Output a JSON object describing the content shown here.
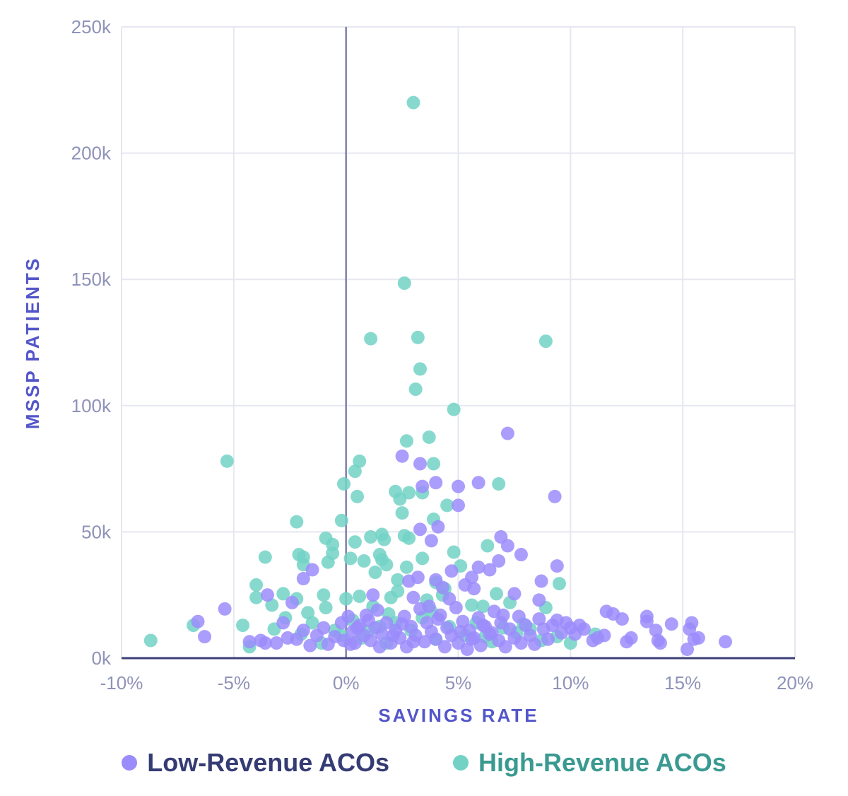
{
  "chart_data": {
    "type": "scatter",
    "title": "",
    "xlabel": "SAVINGS RATE",
    "ylabel": "MSSP PATIENTS",
    "xlim": [
      -10,
      20
    ],
    "ylim": [
      0,
      250000
    ],
    "x_ticks": [
      -10,
      -5,
      0,
      5,
      10,
      15,
      20
    ],
    "x_tick_labels": [
      "-10%",
      "-5%",
      "0%",
      "5%",
      "10%",
      "15%",
      "20%"
    ],
    "y_ticks": [
      0,
      50000,
      100000,
      150000,
      200000,
      250000
    ],
    "y_tick_labels": [
      "0k",
      "50k",
      "100k",
      "150k",
      "200k",
      "250k"
    ],
    "grid": true,
    "legend_position": "bottom",
    "series": [
      {
        "name": "Low-Revenue ACOs",
        "color": "#9b8cfb",
        "label_color": "#353b73",
        "points": [
          [
            2.5,
            80000
          ],
          [
            3.3,
            77000
          ],
          [
            4.0,
            69500
          ],
          [
            5.0,
            68000
          ],
          [
            5.9,
            69500
          ],
          [
            3.4,
            68000
          ],
          [
            7.2,
            89000
          ],
          [
            9.3,
            64000
          ],
          [
            5.0,
            60500
          ],
          [
            6.9,
            48000
          ],
          [
            4.1,
            52000
          ],
          [
            3.3,
            51000
          ],
          [
            3.8,
            46500
          ],
          [
            7.2,
            44500
          ],
          [
            7.8,
            41000
          ],
          [
            6.8,
            38500
          ],
          [
            5.9,
            36000
          ],
          [
            6.4,
            35000
          ],
          [
            4.7,
            34500
          ],
          [
            5.6,
            32000
          ],
          [
            3.2,
            32000
          ],
          [
            2.8,
            30500
          ],
          [
            4.0,
            31000
          ],
          [
            9.4,
            36500
          ],
          [
            8.7,
            30500
          ],
          [
            5.3,
            29000
          ],
          [
            5.7,
            27500
          ],
          [
            4.3,
            28000
          ],
          [
            7.5,
            25500
          ],
          [
            8.6,
            23000
          ],
          [
            3.0,
            24000
          ],
          [
            1.2,
            25000
          ],
          [
            -3.5,
            25000
          ],
          [
            -1.5,
            35000
          ],
          [
            -1.9,
            31500
          ],
          [
            -2.4,
            22000
          ],
          [
            -5.4,
            19500
          ],
          [
            -6.6,
            14500
          ],
          [
            -6.3,
            8500
          ],
          [
            -4.3,
            6500
          ],
          [
            -3.8,
            7000
          ],
          [
            -3.6,
            6000
          ],
          [
            -3.1,
            6000
          ],
          [
            -2.8,
            14000
          ],
          [
            -2.6,
            8000
          ],
          [
            -2.2,
            7500
          ],
          [
            -1.9,
            11000
          ],
          [
            -1.6,
            5000
          ],
          [
            -1.3,
            9000
          ],
          [
            -1.0,
            12000
          ],
          [
            -0.8,
            5500
          ],
          [
            -0.5,
            8500
          ],
          [
            -0.2,
            14000
          ],
          [
            0.1,
            16500
          ],
          [
            0.3,
            10500
          ],
          [
            0.4,
            6000
          ],
          [
            0.6,
            13000
          ],
          [
            0.8,
            9000
          ],
          [
            0.9,
            17000
          ],
          [
            1.1,
            7000
          ],
          [
            1.3,
            12000
          ],
          [
            1.4,
            19000
          ],
          [
            1.6,
            9500
          ],
          [
            1.8,
            14000
          ],
          [
            2.0,
            6000
          ],
          [
            2.2,
            11000
          ],
          [
            2.4,
            8000
          ],
          [
            2.6,
            16500
          ],
          [
            2.7,
            4500
          ],
          [
            2.9,
            12500
          ],
          [
            3.1,
            9000
          ],
          [
            3.3,
            19500
          ],
          [
            3.5,
            6500
          ],
          [
            3.6,
            14000
          ],
          [
            3.8,
            10500
          ],
          [
            4.0,
            7500
          ],
          [
            4.2,
            17000
          ],
          [
            4.4,
            4500
          ],
          [
            4.5,
            12000
          ],
          [
            4.7,
            9000
          ],
          [
            4.9,
            20000
          ],
          [
            5.0,
            6000
          ],
          [
            5.2,
            14500
          ],
          [
            5.4,
            3500
          ],
          [
            5.5,
            11000
          ],
          [
            5.7,
            8000
          ],
          [
            5.9,
            16000
          ],
          [
            6.0,
            5000
          ],
          [
            6.2,
            12500
          ],
          [
            6.4,
            9500
          ],
          [
            6.6,
            18500
          ],
          [
            6.8,
            7000
          ],
          [
            6.9,
            14000
          ],
          [
            7.1,
            4500
          ],
          [
            7.3,
            11500
          ],
          [
            7.5,
            8000
          ],
          [
            7.7,
            16500
          ],
          [
            7.8,
            6000
          ],
          [
            8.0,
            13000
          ],
          [
            8.2,
            9000
          ],
          [
            8.4,
            5500
          ],
          [
            8.6,
            15500
          ],
          [
            8.8,
            11500
          ],
          [
            9.0,
            7500
          ],
          [
            9.2,
            13000
          ],
          [
            9.4,
            15000
          ],
          [
            9.6,
            10000
          ],
          [
            9.8,
            14000
          ],
          [
            10.0,
            12000
          ],
          [
            10.2,
            9500
          ],
          [
            10.4,
            13000
          ],
          [
            10.6,
            11500
          ],
          [
            11.0,
            7000
          ],
          [
            11.2,
            8000
          ],
          [
            11.5,
            9000
          ],
          [
            11.6,
            18500
          ],
          [
            11.9,
            17500
          ],
          [
            12.3,
            15500
          ],
          [
            12.5,
            6500
          ],
          [
            12.7,
            8000
          ],
          [
            13.4,
            16500
          ],
          [
            13.4,
            14500
          ],
          [
            13.8,
            11000
          ],
          [
            13.9,
            7000
          ],
          [
            14.0,
            6000
          ],
          [
            14.5,
            13500
          ],
          [
            15.2,
            3500
          ],
          [
            15.3,
            11500
          ],
          [
            15.4,
            14000
          ],
          [
            15.5,
            7500
          ],
          [
            15.7,
            8000
          ],
          [
            16.9,
            6500
          ],
          [
            -0.1,
            7000
          ],
          [
            0.2,
            5500
          ],
          [
            0.5,
            12000
          ],
          [
            1.0,
            15000
          ],
          [
            1.5,
            4500
          ],
          [
            2.1,
            9000
          ],
          [
            2.5,
            13500
          ],
          [
            3.0,
            6500
          ],
          [
            3.7,
            20500
          ],
          [
            4.1,
            15500
          ],
          [
            4.6,
            23500
          ],
          [
            5.1,
            10500
          ],
          [
            5.6,
            7500
          ],
          [
            6.1,
            13000
          ],
          [
            6.5,
            10000
          ],
          [
            7.0,
            17000
          ]
        ]
      },
      {
        "name": "High-Revenue ACOs",
        "color": "#72d2c6",
        "label_color": "#3a9a91",
        "points": [
          [
            3.0,
            220000
          ],
          [
            2.6,
            148500
          ],
          [
            3.2,
            127000
          ],
          [
            1.1,
            126500
          ],
          [
            8.9,
            125500
          ],
          [
            3.3,
            114500
          ],
          [
            3.1,
            106500
          ],
          [
            4.8,
            98500
          ],
          [
            3.7,
            87500
          ],
          [
            2.7,
            86000
          ],
          [
            -5.3,
            78000
          ],
          [
            0.6,
            78000
          ],
          [
            3.9,
            77000
          ],
          [
            0.4,
            74000
          ],
          [
            -0.1,
            69000
          ],
          [
            6.8,
            69000
          ],
          [
            2.2,
            66000
          ],
          [
            2.8,
            65500
          ],
          [
            3.4,
            65500
          ],
          [
            0.5,
            64000
          ],
          [
            2.4,
            63000
          ],
          [
            4.5,
            60500
          ],
          [
            2.5,
            57500
          ],
          [
            3.9,
            55000
          ],
          [
            -2.2,
            54000
          ],
          [
            -0.2,
            54500
          ],
          [
            1.1,
            48000
          ],
          [
            1.6,
            49000
          ],
          [
            2.6,
            48500
          ],
          [
            2.8,
            47500
          ],
          [
            -0.9,
            47500
          ],
          [
            1.7,
            47000
          ],
          [
            0.4,
            46000
          ],
          [
            -0.6,
            45000
          ],
          [
            6.3,
            44500
          ],
          [
            4.8,
            42000
          ],
          [
            -2.1,
            41000
          ],
          [
            -0.6,
            41500
          ],
          [
            1.5,
            41000
          ],
          [
            -3.6,
            40000
          ],
          [
            -1.9,
            40000
          ],
          [
            3.4,
            39500
          ],
          [
            0.2,
            39500
          ],
          [
            0.8,
            38500
          ],
          [
            -0.8,
            38000
          ],
          [
            1.6,
            39000
          ],
          [
            -1.9,
            37000
          ],
          [
            5.1,
            36500
          ],
          [
            2.7,
            36000
          ],
          [
            1.8,
            37000
          ],
          [
            9.5,
            29500
          ],
          [
            1.3,
            34000
          ],
          [
            2.3,
            31000
          ],
          [
            4.0,
            30000
          ],
          [
            -4.0,
            29000
          ],
          [
            4.4,
            27500
          ],
          [
            6.7,
            25500
          ],
          [
            2.0,
            24000
          ],
          [
            -2.8,
            25500
          ],
          [
            -1.0,
            25000
          ],
          [
            3.6,
            23000
          ],
          [
            7.3,
            22000
          ],
          [
            -4.0,
            24000
          ],
          [
            -2.2,
            23500
          ],
          [
            0.0,
            23500
          ],
          [
            -3.3,
            21000
          ],
          [
            -0.9,
            20000
          ],
          [
            6.1,
            20500
          ],
          [
            8.9,
            20000
          ],
          [
            -1.7,
            18000
          ],
          [
            -2.7,
            16000
          ],
          [
            1.9,
            17500
          ],
          [
            -1.5,
            14000
          ],
          [
            -4.6,
            13000
          ],
          [
            -3.2,
            11500
          ],
          [
            -0.5,
            11000
          ],
          [
            1.5,
            12500
          ],
          [
            -6.8,
            13000
          ],
          [
            -8.7,
            7000
          ],
          [
            -4.3,
            4500
          ],
          [
            -2.0,
            9500
          ],
          [
            -0.2,
            9000
          ],
          [
            0.7,
            8000
          ],
          [
            1.8,
            6000
          ],
          [
            2.9,
            11000
          ],
          [
            4.0,
            7500
          ],
          [
            5.3,
            9000
          ],
          [
            6.5,
            6500
          ],
          [
            7.6,
            10000
          ],
          [
            8.7,
            7000
          ],
          [
            10.0,
            6000
          ],
          [
            11.1,
            9500
          ],
          [
            2.2,
            14000
          ],
          [
            3.4,
            16000
          ],
          [
            4.6,
            12500
          ],
          [
            5.8,
            14000
          ],
          [
            7.0,
            12000
          ],
          [
            8.2,
            11500
          ],
          [
            9.4,
            8500
          ],
          [
            1.0,
            10500
          ],
          [
            0.3,
            15000
          ],
          [
            -1.1,
            6000
          ],
          [
            1.2,
            20500
          ],
          [
            3.8,
            18500
          ],
          [
            6.2,
            8500
          ],
          [
            7.9,
            13500
          ],
          [
            0.6,
            24500
          ],
          [
            2.3,
            26500
          ],
          [
            4.3,
            25000
          ],
          [
            5.6,
            21000
          ]
        ]
      }
    ]
  }
}
